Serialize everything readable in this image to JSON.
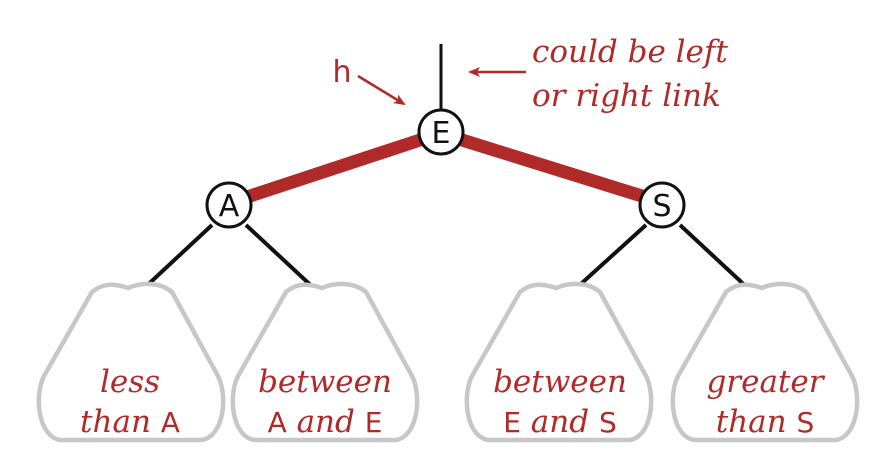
{
  "colors": {
    "red": "#b02a2a",
    "black": "#111111",
    "subtree_outline": "#c7c7c7"
  },
  "nodes": {
    "root": "E",
    "left": "A",
    "right": "S"
  },
  "annotations": {
    "pointer": "h",
    "link_note_line1": "could be left",
    "link_note_line2": "or right link"
  },
  "subtrees": [
    {
      "line1": "less",
      "line2_italic": "than ",
      "line2_key": "A"
    },
    {
      "line1": "between",
      "line2_key_a": "A",
      "line2_italic": " and ",
      "line2_key_b": "E"
    },
    {
      "line1": "between",
      "line2_key_a": "E",
      "line2_italic": " and ",
      "line2_key_b": "S"
    },
    {
      "line1": "greater",
      "line2_italic": "than ",
      "line2_key": "S"
    }
  ]
}
